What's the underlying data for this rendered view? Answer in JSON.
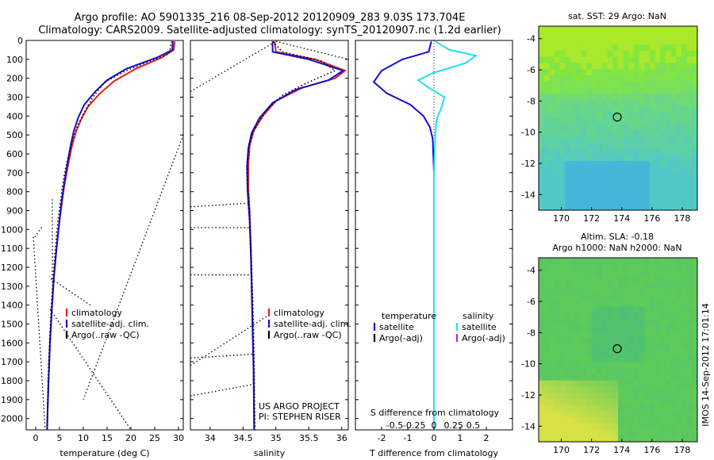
{
  "header": {
    "title_line1": "Argo profile: AO 5901335_216 08-Sep-2012 20120909_283 9.03S 173.704E",
    "title_line2": "Climatology: CARS2009. Satellite-adjusted climatology: synTS_20120907.nc (1.2d earlier)"
  },
  "colors": {
    "climatology": "#e02020",
    "satellite": "#1010d0",
    "argo": "#000000",
    "salinity_satellite": "#20e0f0",
    "salinity_argo": "#d020d0"
  },
  "chart_data": [
    {
      "type": "line",
      "name": "temperature-profile",
      "xlabel": "temperature (deg C)",
      "ylabel": "",
      "xlim": [
        -2,
        31
      ],
      "ylim": [
        2060,
        0
      ],
      "xticks": [
        0,
        5,
        10,
        15,
        20,
        25,
        30
      ],
      "xticklabels": [
        "0",
        "5",
        "10",
        "15",
        "20",
        "25",
        "30"
      ],
      "yticks": [
        0,
        100,
        200,
        300,
        400,
        500,
        600,
        700,
        800,
        900,
        1000,
        1100,
        1200,
        1300,
        1400,
        1500,
        1600,
        1700,
        1800,
        1900,
        2000
      ],
      "yticklabels": [
        "0",
        "100",
        "200",
        "300",
        "400",
        "500",
        "600",
        "700",
        "800",
        "900",
        "1000",
        "1100",
        "1200",
        "1300",
        "1400",
        "1500",
        "1600",
        "1700",
        "1800",
        "1900",
        "2000"
      ],
      "legend": {
        "position": "right",
        "entries": [
          "climatology",
          "satellite-adj. clim.",
          "Argo(..raw -QC)"
        ]
      },
      "series": [
        {
          "name": "climatology",
          "style": "solid",
          "points": [
            [
              29.2,
              5
            ],
            [
              29.0,
              50
            ],
            [
              26.5,
              90
            ],
            [
              21.0,
              150
            ],
            [
              16.5,
              215
            ],
            [
              13.5,
              280
            ],
            [
              11.0,
              350
            ],
            [
              9.5,
              420
            ],
            [
              8.5,
              480
            ],
            [
              7.6,
              560
            ],
            [
              6.8,
              660
            ],
            [
              6.0,
              770
            ],
            [
              5.4,
              880
            ],
            [
              4.8,
              1000
            ],
            [
              4.3,
              1120
            ],
            [
              3.8,
              1260
            ],
            [
              3.4,
              1420
            ],
            [
              3.0,
              1600
            ],
            [
              2.7,
              1800
            ],
            [
              2.5,
              1960
            ],
            [
              2.4,
              2060
            ]
          ]
        },
        {
          "name": "satellite-adj. clim.",
          "style": "solid",
          "points": [
            [
              28.8,
              5
            ],
            [
              28.7,
              50
            ],
            [
              25.5,
              90
            ],
            [
              19.0,
              150
            ],
            [
              15.0,
              210
            ],
            [
              12.5,
              270
            ],
            [
              10.2,
              340
            ],
            [
              8.9,
              410
            ],
            [
              8.0,
              480
            ],
            [
              7.3,
              560
            ],
            [
              6.6,
              660
            ],
            [
              5.9,
              770
            ],
            [
              5.3,
              880
            ],
            [
              4.8,
              1000
            ],
            [
              4.3,
              1120
            ],
            [
              3.8,
              1260
            ],
            [
              3.4,
              1420
            ],
            [
              3.0,
              1600
            ],
            [
              2.7,
              1800
            ],
            [
              2.5,
              1960
            ],
            [
              2.4,
              2060
            ]
          ]
        },
        {
          "name": "Argo(..raw -QC)",
          "style": "dotted",
          "points": [
            [
              28.6,
              5
            ],
            [
              28.0,
              70
            ],
            [
              24.0,
              110
            ],
            [
              19.0,
              160
            ],
            [
              14.5,
              220
            ],
            [
              12.0,
              300
            ],
            [
              10.2,
              380
            ],
            [
              8.8,
              450
            ],
            [
              7.7,
              530
            ],
            [
              6.8,
              620
            ],
            [
              6.0,
              710
            ],
            [
              5.4,
              810
            ],
            [
              4.9,
              910
            ],
            [
              4.4,
              1020
            ],
            [
              4.0,
              1140
            ],
            [
              3.6,
              1280
            ],
            [
              3.2,
              1440
            ],
            [
              2.9,
              1600
            ],
            [
              2.6,
              1800
            ],
            [
              2.4,
              2060
            ]
          ]
        }
      ]
    },
    {
      "type": "line",
      "name": "salinity-profile",
      "xlabel": "salinity",
      "ylabel": "",
      "xlim": [
        33.7,
        36.1
      ],
      "ylim": [
        2060,
        0
      ],
      "xticks": [
        34,
        34.5,
        35,
        35.5,
        36
      ],
      "xticklabels": [
        "34",
        "34.5",
        "35",
        "35.5",
        "36"
      ],
      "legend": {
        "position": "right",
        "entries": [
          "climatology",
          "satellite-adj. clim.",
          "Argo(..raw -QC)"
        ]
      },
      "annotations": [
        "US ARGO PROJECT",
        "PI: STEPHEN RISER"
      ],
      "series": [
        {
          "name": "climatology",
          "style": "solid",
          "points": [
            [
              34.98,
              5
            ],
            [
              35.0,
              60
            ],
            [
              35.6,
              100
            ],
            [
              36.05,
              160
            ],
            [
              35.9,
              200
            ],
            [
              35.4,
              250
            ],
            [
              35.0,
              320
            ],
            [
              34.8,
              400
            ],
            [
              34.66,
              480
            ],
            [
              34.6,
              560
            ],
            [
              34.58,
              660
            ],
            [
              34.58,
              780
            ],
            [
              34.6,
              900
            ],
            [
              34.62,
              1100
            ],
            [
              34.64,
              1400
            ],
            [
              34.66,
              1700
            ],
            [
              34.67,
              2060
            ]
          ]
        },
        {
          "name": "satellite-adj. clim.",
          "style": "solid",
          "points": [
            [
              34.95,
              5
            ],
            [
              34.95,
              60
            ],
            [
              35.5,
              100
            ],
            [
              36.02,
              160
            ],
            [
              35.8,
              210
            ],
            [
              35.3,
              260
            ],
            [
              34.95,
              330
            ],
            [
              34.75,
              410
            ],
            [
              34.63,
              490
            ],
            [
              34.58,
              570
            ],
            [
              34.56,
              670
            ],
            [
              34.57,
              800
            ],
            [
              34.6,
              950
            ],
            [
              34.62,
              1150
            ],
            [
              34.64,
              1450
            ],
            [
              34.66,
              1750
            ],
            [
              34.67,
              2060
            ]
          ]
        },
        {
          "name": "Argo(..raw -QC)",
          "style": "dotted",
          "points": [
            [
              34.95,
              5
            ],
            [
              35.1,
              60
            ],
            [
              35.7,
              110
            ],
            [
              35.9,
              160
            ],
            [
              35.5,
              220
            ],
            [
              35.1,
              290
            ],
            [
              34.85,
              370
            ],
            [
              34.7,
              450
            ],
            [
              34.6,
              540
            ],
            [
              34.57,
              640
            ],
            [
              34.57,
              760
            ],
            [
              34.6,
              900
            ],
            [
              34.62,
              1100
            ],
            [
              34.65,
              1400
            ],
            [
              34.67,
              1700
            ],
            [
              34.68,
              2060
            ]
          ]
        }
      ]
    },
    {
      "type": "line",
      "name": "difference-from-climatology",
      "xlabel": "T difference from climatology",
      "xlabel_top": "S difference from climatology",
      "xlim": [
        -3,
        3
      ],
      "ylim": [
        2060,
        0
      ],
      "xticks_T": [
        -2,
        -1,
        0,
        1,
        2
      ],
      "xticklabels_T": [
        "-2",
        "-1",
        "0",
        "1",
        "2"
      ],
      "xticks_S": [
        -0.5,
        -0.25,
        0,
        0.25,
        0.5
      ],
      "xticklabels_S": [
        "-0.5",
        "-0.25",
        "0",
        "0.25",
        "0.5"
      ],
      "legend": {
        "position": "right",
        "headers": [
          "temperature",
          "salinity"
        ],
        "entries": [
          "satellite",
          "Argo(-adj)",
          "satellite",
          "Argo(-adj)"
        ]
      },
      "series": [
        {
          "name": "temperature satellite",
          "style": "solid",
          "points": [
            [
              -0.1,
              5
            ],
            [
              -0.2,
              60
            ],
            [
              -1.2,
              100
            ],
            [
              -2.0,
              160
            ],
            [
              -2.3,
              220
            ],
            [
              -1.8,
              280
            ],
            [
              -0.9,
              340
            ],
            [
              -0.4,
              400
            ],
            [
              -0.15,
              460
            ],
            [
              -0.05,
              520
            ],
            [
              0.0,
              700
            ],
            [
              0.0,
              1000
            ],
            [
              0.0,
              1400
            ],
            [
              0.0,
              2060
            ]
          ]
        },
        {
          "name": "salinity satellite",
          "style": "solid",
          "points": [
            [
              0.05,
              5
            ],
            [
              0.6,
              50
            ],
            [
              1.6,
              80
            ],
            [
              1.2,
              120
            ],
            [
              0.0,
              170
            ],
            [
              -0.6,
              210
            ],
            [
              -0.2,
              250
            ],
            [
              0.4,
              300
            ],
            [
              0.3,
              350
            ],
            [
              0.1,
              420
            ],
            [
              0.05,
              500
            ],
            [
              0.0,
              700
            ],
            [
              0.0,
              1000
            ],
            [
              0.0,
              2060
            ]
          ]
        }
      ]
    },
    {
      "type": "heatmap",
      "name": "sst-map",
      "title": "sat. SST: 29 Argo: NaN",
      "xlim": [
        168.5,
        179
      ],
      "ylim": [
        -15,
        -3.2
      ],
      "xticks": [
        170,
        172,
        174,
        176,
        178
      ],
      "xticklabels": [
        "170",
        "172",
        "174",
        "176",
        "178"
      ],
      "yticks": [
        -4,
        -6,
        -8,
        -10,
        -12,
        -14
      ],
      "yticklabels": [
        "-4",
        "-6",
        "-8",
        "-10",
        "-12",
        "-14"
      ],
      "marker": [
        173.7,
        -9.03
      ]
    },
    {
      "type": "heatmap",
      "name": "sla-map",
      "title_line1": "Altim. SLA: -0.18",
      "title_line2": "Argo h1000: NaN h2000: NaN",
      "xlim": [
        168.5,
        179
      ],
      "ylim": [
        -15,
        -3.2
      ],
      "xticks": [
        170,
        172,
        174,
        176,
        178
      ],
      "xticklabels": [
        "170",
        "172",
        "174",
        "176",
        "178"
      ],
      "yticks": [
        -4,
        -6,
        -8,
        -10,
        -12,
        -14
      ],
      "yticklabels": [
        "-4",
        "-6",
        "-8",
        "-10",
        "-12",
        "-14"
      ],
      "marker": [
        173.7,
        -9.03
      ]
    }
  ],
  "footer": {
    "stamp": "IMOS 14-Sep-2012 17:01:14"
  }
}
